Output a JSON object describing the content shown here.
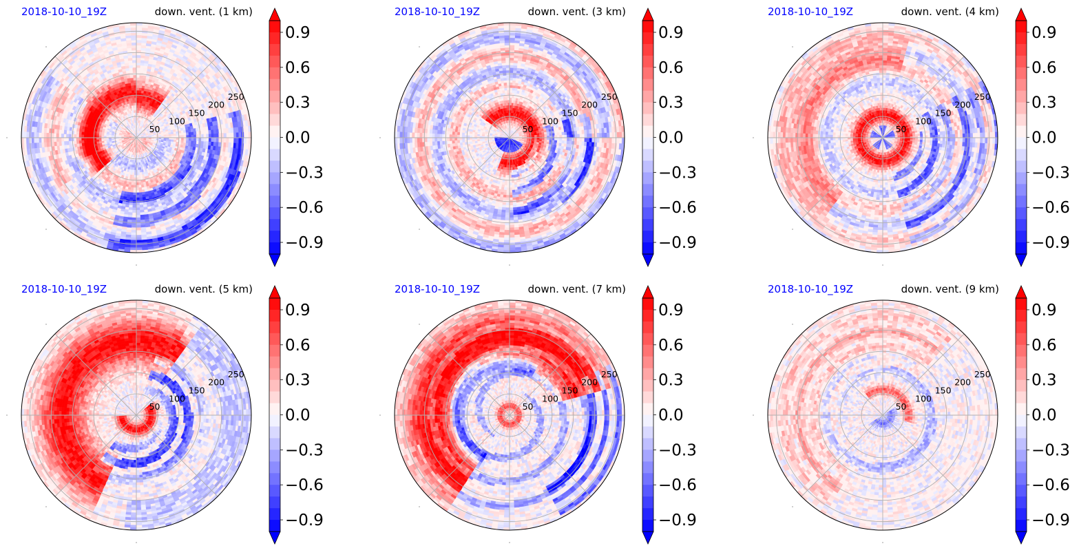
{
  "figure": {
    "panels": [
      {
        "id": "p1",
        "date": "2018-10-10_19Z",
        "title": "down. vent. (1 km)",
        "height_km": 1,
        "pattern": 1
      },
      {
        "id": "p2",
        "date": "2018-10-10_19Z",
        "title": "down. vent. (3 km)",
        "height_km": 3,
        "pattern": 2
      },
      {
        "id": "p3",
        "date": "2018-10-10_19Z",
        "title": "down. vent. (4 km)",
        "height_km": 4,
        "pattern": 3
      },
      {
        "id": "p4",
        "date": "2018-10-10_19Z",
        "title": "down. vent. (5 km)",
        "height_km": 5,
        "pattern": 4
      },
      {
        "id": "p5",
        "date": "2018-10-10_19Z",
        "title": "down. vent. (7 km)",
        "height_km": 7,
        "pattern": 5
      },
      {
        "id": "p6",
        "date": "2018-10-10_19Z",
        "title": "down. vent. (9 km)",
        "height_km": 9,
        "pattern": 6
      }
    ]
  },
  "chart_data": {
    "type": "heatmap",
    "projection": "polar",
    "radial_ticks": [
      50,
      100,
      150,
      200,
      250
    ],
    "angular_gridlines_deg": [
      0,
      45,
      90,
      135,
      180,
      225,
      270,
      315
    ],
    "grid": true,
    "colormap": "bwr",
    "colorbar": {
      "min": -1.0,
      "max": 1.0,
      "ticks": [
        "0.9",
        "0.6",
        "0.3",
        "0.0",
        "−0.3",
        "−0.6",
        "−0.9"
      ],
      "tick_values": [
        0.9,
        0.6,
        0.3,
        0.0,
        -0.3,
        -0.6,
        -0.9
      ],
      "levels": 20,
      "extend": "both"
    },
    "colors": {
      "negative": "#0000ff",
      "neutral": "#ffffff",
      "positive": "#ff0000"
    }
  }
}
